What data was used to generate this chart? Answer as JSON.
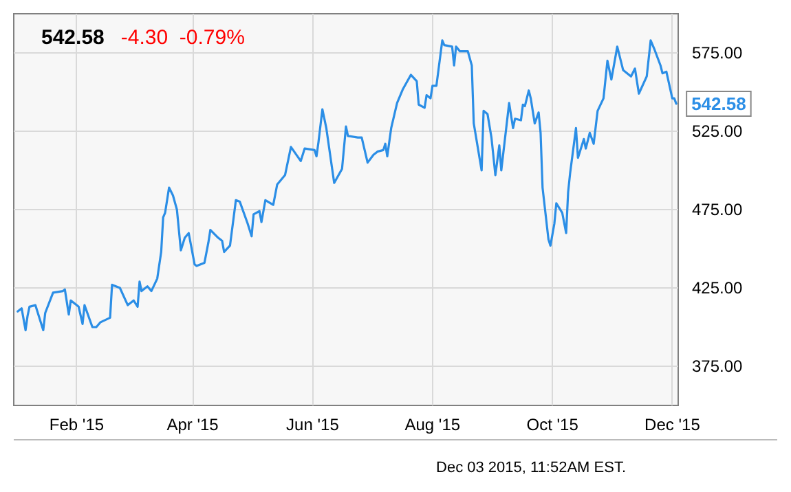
{
  "chart_data": {
    "type": "line",
    "title": "542.58",
    "subtitle": "-4.30  -0.79%",
    "annotations": [
      "Dec 03 2015, 11:52AM EST."
    ],
    "x": [
      "2015-01-02",
      "2015-01-04",
      "2015-01-06",
      "2015-01-07",
      "2015-01-08",
      "2015-01-11",
      "2015-01-15",
      "2015-01-16",
      "2015-01-20",
      "2015-01-25",
      "2015-01-26",
      "2015-01-28",
      "2015-01-29",
      "2015-02-02",
      "2015-02-04",
      "2015-02-05",
      "2015-02-09",
      "2015-02-11",
      "2015-02-13",
      "2015-02-18",
      "2015-02-19",
      "2015-02-23",
      "2015-02-27",
      "2015-03-02",
      "2015-03-04",
      "2015-03-05",
      "2015-03-06",
      "2015-03-09",
      "2015-03-11",
      "2015-03-14",
      "2015-03-16",
      "2015-03-17",
      "2015-03-18",
      "2015-03-20",
      "2015-03-22",
      "2015-03-24",
      "2015-03-26",
      "2015-03-28",
      "2015-03-30",
      "2015-04-02",
      "2015-04-03",
      "2015-04-07",
      "2015-04-09",
      "2015-04-10",
      "2015-04-14",
      "2015-04-16",
      "2015-04-17",
      "2015-04-20",
      "2015-04-23",
      "2015-04-25",
      "2015-04-29",
      "2015-05-01",
      "2015-05-02",
      "2015-05-05",
      "2015-05-06",
      "2015-05-08",
      "2015-05-12",
      "2015-05-14",
      "2015-05-18",
      "2015-05-21",
      "2015-05-26",
      "2015-05-28",
      "2015-06-02",
      "2015-06-03",
      "2015-06-04",
      "2015-06-06",
      "2015-06-08",
      "2015-06-12",
      "2015-06-16",
      "2015-06-18",
      "2015-06-19",
      "2015-06-24",
      "2015-06-26",
      "2015-06-29",
      "2015-07-02",
      "2015-07-04",
      "2015-07-07",
      "2015-07-08",
      "2015-07-09",
      "2015-07-11",
      "2015-07-14",
      "2015-07-17",
      "2015-07-21",
      "2015-07-24",
      "2015-07-25",
      "2015-07-28",
      "2015-07-29",
      "2015-07-31",
      "2015-08-01",
      "2015-08-03",
      "2015-08-06",
      "2015-08-07",
      "2015-08-11",
      "2015-08-12",
      "2015-08-13",
      "2015-08-15",
      "2015-08-19",
      "2015-08-21",
      "2015-08-22",
      "2015-08-26",
      "2015-08-27",
      "2015-08-29",
      "2015-08-31",
      "2015-09-02",
      "2015-09-04",
      "2015-09-05",
      "2015-09-09",
      "2015-09-11",
      "2015-09-12",
      "2015-09-15",
      "2015-09-16",
      "2015-09-17",
      "2015-09-19",
      "2015-09-20",
      "2015-09-22",
      "2015-09-24",
      "2015-09-25",
      "2015-09-26",
      "2015-09-29",
      "2015-09-30",
      "2015-10-02",
      "2015-10-03",
      "2015-10-06",
      "2015-10-08",
      "2015-10-09",
      "2015-10-10",
      "2015-10-13",
      "2015-10-14",
      "2015-10-17",
      "2015-10-18",
      "2015-10-20",
      "2015-10-22",
      "2015-10-24",
      "2015-10-27",
      "2015-10-29",
      "2015-10-31",
      "2015-11-03",
      "2015-11-06",
      "2015-11-10",
      "2015-11-12",
      "2015-11-14",
      "2015-11-18",
      "2015-11-20",
      "2015-11-22",
      "2015-11-25",
      "2015-11-26",
      "2015-11-28",
      "2015-12-01",
      "2015-12-02",
      "2015-12-03"
    ],
    "series": [
      {
        "color": "#2b8ee6",
        "values": [
          410,
          412,
          398,
          407,
          413,
          414,
          398,
          409,
          422,
          423,
          424,
          408,
          417,
          413,
          402,
          414,
          400,
          400,
          403,
          406,
          427,
          425,
          414,
          417,
          413,
          429,
          423,
          426,
          423,
          431,
          448,
          470,
          473,
          489,
          484,
          475,
          449,
          457,
          460,
          440,
          439,
          441,
          454,
          462,
          457,
          455,
          448,
          452,
          481,
          480,
          466,
          458,
          472,
          474,
          467,
          481,
          478,
          491,
          497,
          515,
          506,
          514,
          513,
          509,
          518,
          539,
          527,
          492,
          501,
          528,
          522,
          521,
          521,
          505,
          510,
          512,
          513,
          517,
          509,
          527,
          543,
          552,
          561,
          557,
          542,
          540,
          548,
          546,
          554,
          554,
          583,
          580,
          579,
          567,
          579,
          576,
          576,
          567,
          530,
          500,
          538,
          536,
          521,
          497,
          516,
          500,
          543,
          527,
          533,
          532,
          542,
          541,
          551,
          546,
          530,
          537,
          524,
          489,
          456,
          452,
          466,
          479,
          473,
          460,
          486,
          498,
          527,
          508,
          520,
          514,
          524,
          517,
          538,
          546,
          570,
          558,
          579,
          564,
          560,
          565,
          549,
          560,
          583,
          577,
          567,
          562,
          563,
          546,
          546,
          542.58
        ],
        "value_labels": [
          null,
          null,
          null,
          null,
          null,
          null,
          null,
          null,
          null,
          null,
          null,
          null,
          null,
          null,
          null,
          null,
          null,
          null,
          null,
          null,
          null,
          null,
          null,
          null,
          null,
          null,
          null,
          null,
          null,
          null,
          null,
          null,
          null,
          null,
          null,
          null,
          null,
          null,
          null,
          null,
          null,
          null,
          null,
          null,
          null,
          null,
          null,
          null,
          null,
          null,
          null,
          null,
          null,
          null,
          null,
          null,
          null,
          null,
          null,
          null,
          null,
          null,
          null,
          null,
          null,
          null,
          null,
          null,
          null,
          null,
          null,
          null,
          null,
          null,
          null,
          null,
          null,
          null,
          null,
          null,
          null,
          null,
          null,
          null,
          null,
          null,
          null,
          null,
          null,
          null,
          null,
          null,
          null,
          null,
          null,
          null,
          null,
          null,
          null,
          null,
          null,
          null,
          null,
          null,
          null,
          null,
          null,
          null,
          null,
          null,
          null,
          null,
          null,
          null,
          null,
          null,
          null,
          null,
          null,
          null,
          null,
          null,
          null,
          null,
          null,
          null,
          null,
          null,
          null,
          null,
          null,
          null,
          null,
          null,
          null,
          null,
          null,
          null,
          null,
          null,
          null,
          null,
          null,
          null,
          null,
          null,
          null,
          null,
          null,
          "542.58"
        ]
      }
    ],
    "xlim": [
      "2014-12-31",
      "2015-12-04"
    ],
    "xticks": [
      {
        "value": "2015-02-01",
        "label": "Feb '15"
      },
      {
        "value": "2015-04-01",
        "label": "Apr '15"
      },
      {
        "value": "2015-06-01",
        "label": "Jun '15"
      },
      {
        "value": "2015-08-01",
        "label": "Aug '15"
      },
      {
        "value": "2015-10-01",
        "label": "Oct '15"
      },
      {
        "value": "2015-12-01",
        "label": "Dec '15"
      }
    ],
    "ylim": [
      350,
      600
    ],
    "yticks": [
      {
        "value": 375,
        "label": "375.00"
      },
      {
        "value": 425,
        "label": "425.00"
      },
      {
        "value": 475,
        "label": "475.00"
      },
      {
        "value": 525,
        "label": "525.00"
      },
      {
        "value": 575,
        "label": "575.00"
      }
    ],
    "grid": true,
    "marker": "none",
    "line_style": "solid"
  }
}
